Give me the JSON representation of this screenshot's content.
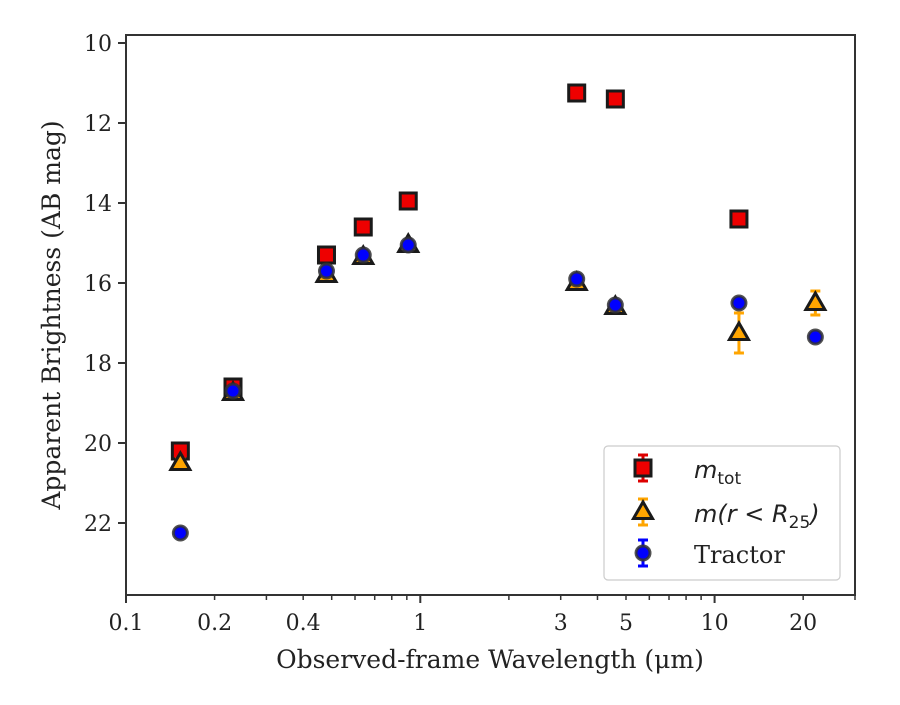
{
  "chart_data": {
    "type": "scatter",
    "xlabel": "Observed-frame Wavelength (μm)",
    "ylabel": "Apparent Brightness (AB mag)",
    "x_scale": "log",
    "xlim": [
      0.1,
      30
    ],
    "ylim": [
      23.8,
      9.8
    ],
    "y_inverted": true,
    "x_ticks": [
      {
        "value": 0.1,
        "label": "0.1"
      },
      {
        "value": 0.2,
        "label": "0.2"
      },
      {
        "value": 0.4,
        "label": "0.4"
      },
      {
        "value": 1,
        "label": "1"
      },
      {
        "value": 3,
        "label": "3"
      },
      {
        "value": 5,
        "label": "5"
      },
      {
        "value": 10,
        "label": "10"
      },
      {
        "value": 20,
        "label": "20"
      }
    ],
    "y_ticks": [
      {
        "value": 10,
        "label": "10"
      },
      {
        "value": 12,
        "label": "12"
      },
      {
        "value": 14,
        "label": "14"
      },
      {
        "value": 16,
        "label": "16"
      },
      {
        "value": 18,
        "label": "18"
      },
      {
        "value": 20,
        "label": "20"
      },
      {
        "value": 22,
        "label": "22"
      }
    ],
    "grid": false,
    "legend_position": "lower-right",
    "series": [
      {
        "name": "m_tot",
        "marker": "square",
        "color": "#ee0000",
        "edge_color": "#1a1a1a",
        "error_color": "#dd0000",
        "points": [
          {
            "x": 0.153,
            "y": 20.2,
            "err": 0.1
          },
          {
            "x": 0.231,
            "y": 18.6,
            "err": 0.1
          },
          {
            "x": 0.48,
            "y": 15.3,
            "err": 0.05
          },
          {
            "x": 0.64,
            "y": 14.6,
            "err": 0.05
          },
          {
            "x": 0.91,
            "y": 13.95,
            "err": 0.05
          },
          {
            "x": 3.4,
            "y": 11.25,
            "err": 0.05
          },
          {
            "x": 4.6,
            "y": 11.4,
            "err": 0.05
          },
          {
            "x": 12.1,
            "y": 14.4,
            "err": 0.05
          }
        ]
      },
      {
        "name": "m(r<R25)",
        "marker": "triangle",
        "color": "#ffa500",
        "edge_color": "#1a1a1a",
        "error_color": "#ffa500",
        "points": [
          {
            "x": 0.153,
            "y": 20.5,
            "err": 0.1
          },
          {
            "x": 0.231,
            "y": 18.75,
            "err": 0.1
          },
          {
            "x": 0.48,
            "y": 15.8,
            "err": 0.05
          },
          {
            "x": 0.64,
            "y": 15.35,
            "err": 0.05
          },
          {
            "x": 0.91,
            "y": 15.05,
            "err": 0.05
          },
          {
            "x": 3.4,
            "y": 16.0,
            "err": 0.05
          },
          {
            "x": 4.6,
            "y": 16.6,
            "err": 0.05
          },
          {
            "x": 12.1,
            "y": 17.25,
            "err": 0.5
          },
          {
            "x": 22.0,
            "y": 16.5,
            "err": 0.3
          }
        ]
      },
      {
        "name": "Tractor",
        "marker": "circle",
        "color": "#0000ff",
        "edge_color": "#333333",
        "error_color": "#0000ff",
        "points": [
          {
            "x": 0.153,
            "y": 22.25,
            "err": 0.05
          },
          {
            "x": 0.231,
            "y": 18.7,
            "err": 0.05
          },
          {
            "x": 0.48,
            "y": 15.7,
            "err": 0.05
          },
          {
            "x": 0.64,
            "y": 15.3,
            "err": 0.05
          },
          {
            "x": 0.91,
            "y": 15.05,
            "err": 0.05
          },
          {
            "x": 3.4,
            "y": 15.9,
            "err": 0.05
          },
          {
            "x": 4.6,
            "y": 16.55,
            "err": 0.05
          },
          {
            "x": 12.1,
            "y": 16.5,
            "err": 0.05
          },
          {
            "x": 22.0,
            "y": 17.35,
            "err": 0.05
          }
        ]
      }
    ],
    "legend": {
      "entries": [
        {
          "label_base": "m",
          "label_sub": "tot"
        },
        {
          "label_text": "m(r < R",
          "label_sub": "25",
          "label_close": ")"
        },
        {
          "label_text": "Tractor"
        }
      ]
    }
  }
}
